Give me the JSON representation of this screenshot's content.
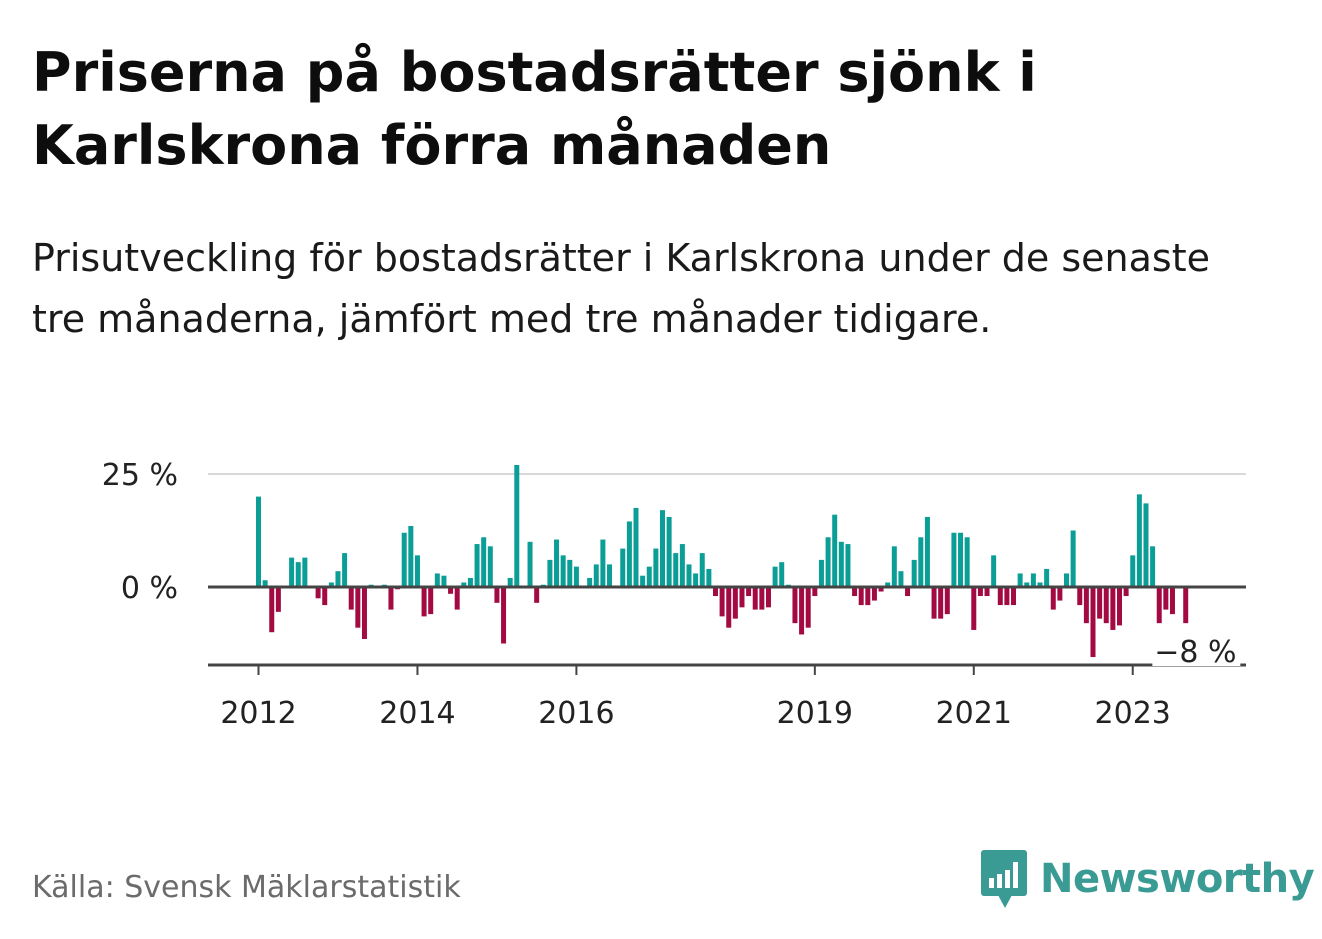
{
  "title": "Priserna på bostadsrätter sjönk i Karlskrona förra månaden",
  "subtitle": "Prisutveckling för bostadsrätter i Karlskrona under de senaste tre månaderna, jämfört med tre månader tidigare.",
  "source": "Källa: Svensk Mäklarstatistik",
  "brand": "Newsworthy",
  "colors": {
    "positive": "#0a9e96",
    "negative": "#a30a42",
    "brand": "#3a9a94",
    "grid": "#d9d9d9",
    "zero_line": "#444444"
  },
  "chart_data": {
    "type": "bar",
    "ylim": [
      -16,
      27
    ],
    "yticks": [
      {
        "value": 25,
        "label": "25 %"
      },
      {
        "value": 0,
        "label": "0 %"
      }
    ],
    "xticks": [
      {
        "index": 0,
        "label": "2012"
      },
      {
        "index": 24,
        "label": "2014"
      },
      {
        "index": 48,
        "label": "2016"
      },
      {
        "index": 84,
        "label": "2019"
      },
      {
        "index": 108,
        "label": "2021"
      },
      {
        "index": 132,
        "label": "2023"
      }
    ],
    "annotation": {
      "index": 141,
      "label": "−8 %"
    },
    "values": [
      20,
      1.5,
      -10,
      -5.5,
      0,
      6.5,
      5.5,
      6.5,
      0,
      -2.5,
      -4,
      1,
      3.5,
      7.5,
      -5,
      -9,
      -11.5,
      0.5,
      0,
      0.5,
      -5,
      -0.5,
      12,
      13.5,
      7,
      -6.5,
      -6,
      3,
      2.5,
      -1.5,
      -5,
      1,
      2,
      9.5,
      11,
      9,
      -3.5,
      -12.5,
      2,
      27,
      0,
      10,
      -3.5,
      0.5,
      6,
      10.5,
      7,
      6,
      4.5,
      0,
      2,
      5,
      10.5,
      5,
      0,
      8.5,
      14.5,
      17.5,
      2.5,
      4.5,
      8.5,
      17,
      15.5,
      7.5,
      9.5,
      5,
      3,
      7.5,
      4,
      -2,
      -6.5,
      -9,
      -7,
      -4.5,
      -2,
      -5,
      -5,
      -4.5,
      4.5,
      5.5,
      0.5,
      -8,
      -10.5,
      -9,
      -2,
      6,
      11,
      16,
      10,
      9.5,
      -2,
      -4,
      -4,
      -3,
      -1,
      1,
      9,
      3.5,
      -2,
      6,
      11,
      15.5,
      -7,
      -7,
      -6,
      12,
      12,
      11,
      -9.5,
      -2,
      -2,
      7,
      -4,
      -4,
      -4,
      3,
      1,
      3,
      1,
      4,
      -5,
      -3,
      3,
      12.5,
      -4,
      -8,
      -15.5,
      -7,
      -8,
      -9.5,
      -8.5,
      -2,
      7,
      20.5,
      18.5,
      9,
      -8,
      -5,
      -6,
      0,
      -8
    ]
  }
}
